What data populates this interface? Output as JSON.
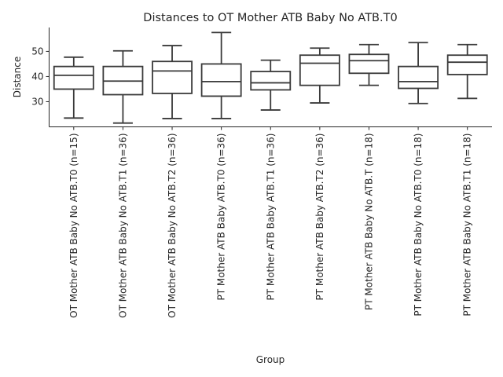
{
  "chart_data": {
    "type": "box",
    "title": "Distances to OT Mother ATB Baby No ATB.T0",
    "xlabel": "Group",
    "ylabel": "Distance",
    "ylim": [
      20,
      59.5
    ],
    "yticks": [
      30,
      40,
      50
    ],
    "grid": false,
    "categories": [
      "OT Mother ATB Baby No ATB.T0 (n=15)",
      "OT Mother ATB Baby No ATB.T1 (n=36)",
      "OT Mother ATB Baby No ATB.T2 (n=36)",
      "PT Mother ATB Baby ATB.T0 (n=36)",
      "PT Mother ATB Baby ATB.T1 (n=36)",
      "PT Mother ATB Baby ATB.T2 (n=36)",
      "PT Mother ATB Baby No ATB.T (n=18)",
      "PT Mother ATB Baby No ATB.T0 (n=18)",
      "PT Mother ATB Baby No ATB.T1 (n=18)"
    ],
    "boxes": [
      {
        "whislo": 23.5,
        "q1": 35.0,
        "med": 40.5,
        "q3": 44.0,
        "whishi": 47.7
      },
      {
        "whislo": 21.5,
        "q1": 32.8,
        "med": 38.2,
        "q3": 44.0,
        "whishi": 50.2
      },
      {
        "whislo": 23.3,
        "q1": 33.3,
        "med": 42.2,
        "q3": 46.0,
        "whishi": 52.3
      },
      {
        "whislo": 23.3,
        "q1": 32.2,
        "med": 38.0,
        "q3": 45.0,
        "whishi": 57.5
      },
      {
        "whislo": 26.7,
        "q1": 34.7,
        "med": 37.5,
        "q3": 42.0,
        "whishi": 46.5
      },
      {
        "whislo": 29.5,
        "q1": 36.5,
        "med": 45.3,
        "q3": 48.5,
        "whishi": 51.3
      },
      {
        "whislo": 36.5,
        "q1": 41.3,
        "med": 46.3,
        "q3": 48.8,
        "whishi": 52.7
      },
      {
        "whislo": 29.3,
        "q1": 35.3,
        "med": 38.0,
        "q3": 44.0,
        "whishi": 53.5
      },
      {
        "whislo": 31.3,
        "q1": 40.8,
        "med": 45.7,
        "q3": 48.5,
        "whishi": 52.7
      }
    ]
  }
}
